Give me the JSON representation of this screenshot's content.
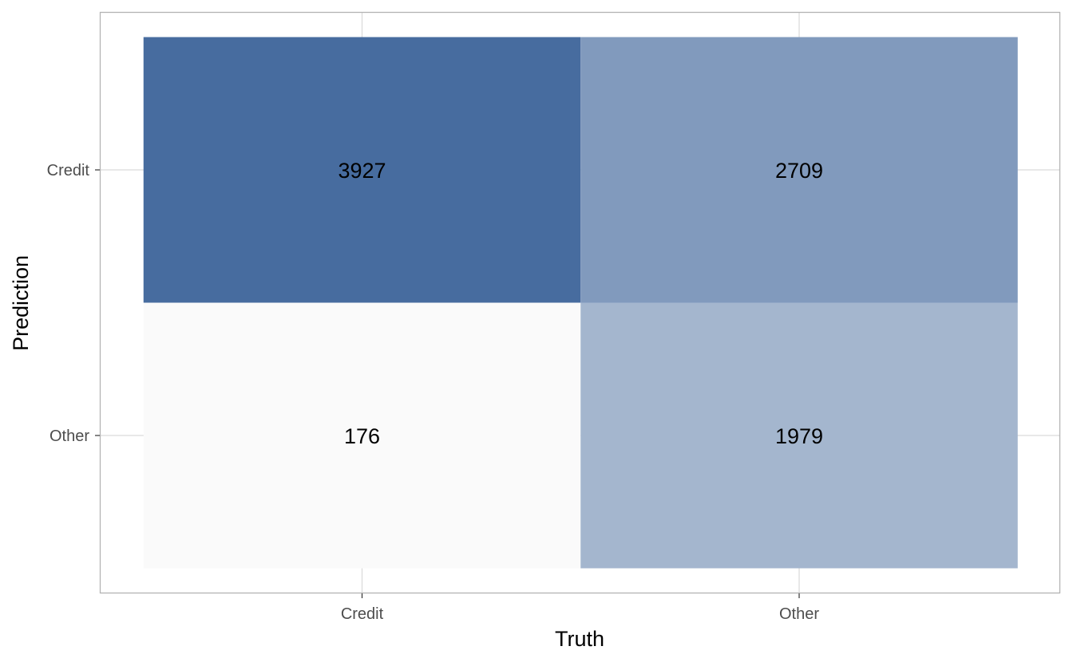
{
  "chart_data": {
    "type": "heatmap",
    "title": "",
    "xlabel": "Truth",
    "ylabel": "Prediction",
    "x_categories": [
      "Credit",
      "Other"
    ],
    "y_categories": [
      "Credit",
      "Other"
    ],
    "cells": [
      {
        "truth": "Credit",
        "prediction": "Credit",
        "value": 3927
      },
      {
        "truth": "Other",
        "prediction": "Credit",
        "value": 2709
      },
      {
        "truth": "Credit",
        "prediction": "Other",
        "value": 176
      },
      {
        "truth": "Other",
        "prediction": "Other",
        "value": 1979
      }
    ],
    "color_low": "#fafafa",
    "color_high": "#476c9f",
    "grid": true,
    "legend": "none"
  }
}
